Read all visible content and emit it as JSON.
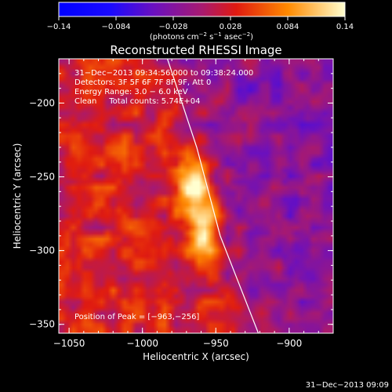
{
  "chart_data": {
    "type": "heatmap",
    "title": "Reconstructed RHESSI Image",
    "xlabel": "Heliocentric X (arcsec)",
    "ylabel": "Heliocentric Y (arcsec)",
    "xlim": [
      -1057,
      -870
    ],
    "ylim": [
      -356,
      -170
    ],
    "x_ticks": [
      -1050,
      -1000,
      -950,
      -900
    ],
    "x_tick_labels": [
      "−1050",
      "−1000",
      "−950",
      "−900"
    ],
    "y_ticks": [
      -200,
      -250,
      -300,
      -350
    ],
    "y_tick_labels": [
      "−200",
      "−250",
      "−300",
      "−350"
    ],
    "colorbar": {
      "range": [
        -0.14,
        0.14
      ],
      "ticks": [
        -0.14,
        -0.084,
        -0.028,
        0.028,
        0.084,
        0.14
      ],
      "tick_labels": [
        "−0.14",
        "−0.084",
        "−0.028",
        "0.028",
        "0.084",
        "0.14"
      ],
      "units": {
        "open": "(photons cm",
        "exp1": "−2",
        "mid1": " s",
        "exp2": "−1",
        "mid2": " asec",
        "exp3": "−2",
        "close": ")"
      }
    },
    "annotations": [
      "31−Dec−2013 09:34:56.000 to 09:38:24.000",
      "Detectors: 3F 5F 6F 7F 8F 9F, Att 0",
      "Energy Range: 3.0 − 6.0 keV",
      "Clean     Total counts: 5.74E+04"
    ],
    "peak": {
      "label": "Position of Peak = [−963,−256]",
      "x": -963,
      "y": -256
    },
    "limb_curve": [
      [
        -983,
        -170
      ],
      [
        -963,
        -230
      ],
      [
        -947,
        -290
      ],
      [
        -921,
        -356
      ]
    ],
    "sources": [
      {
        "x": -966,
        "y": -254,
        "peak": 0.14
      },
      {
        "x": -958,
        "y": -285,
        "peak": 0.13
      }
    ],
    "timestamp": "31−Dec−2013 09:09"
  }
}
